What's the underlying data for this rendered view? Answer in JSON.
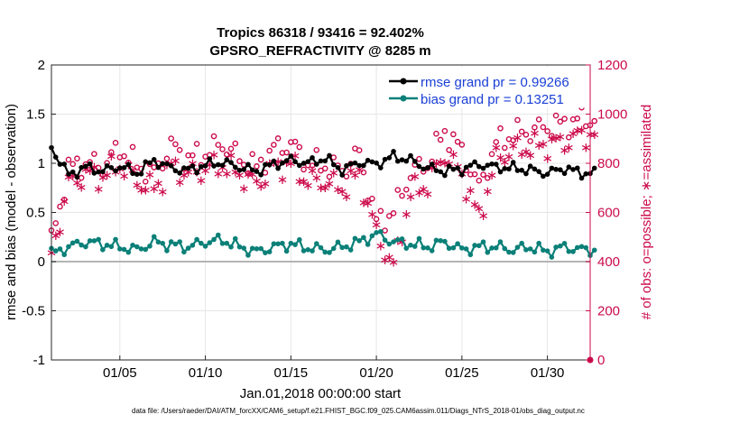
{
  "chart_data": {
    "type": "line",
    "title_line1": "Tropics 86318 / 93416 = 92.402%",
    "title_line2": "GPSRO_REFRACTIVITY @ 8285 m",
    "xlabel": "Jan.01,2018 00:00:00 start",
    "ylabel_left": "rmse and bias (model - observation)",
    "ylabel_right": "# of obs: o=possible; ∗=assimilated",
    "x_ticks": [
      "01/05",
      "01/10",
      "01/15",
      "01/20",
      "01/25",
      "01/30"
    ],
    "x_tick_days": [
      5,
      10,
      15,
      20,
      25,
      30
    ],
    "xlim": [
      1,
      32.5
    ],
    "ylim_left": [
      -1,
      2
    ],
    "ylim_right": [
      0,
      1200
    ],
    "y_ticks_left": [
      "-1",
      "-0.5",
      "0",
      "0.5",
      "1",
      "1.5",
      "2"
    ],
    "y_ticks_right": [
      "0",
      "200",
      "400",
      "600",
      "800",
      "1000",
      "1200"
    ],
    "legend": [
      {
        "name": "rmse grand pr = 0.99266",
        "color": "#000000"
      },
      {
        "name": "bias grand pr = 0.13251",
        "color": "#0a8078"
      }
    ],
    "colors": {
      "rmse": "#000000",
      "bias": "#0a8078",
      "obs": "#cc0a4a",
      "zero": "#b4b4b4"
    },
    "rmse_daily": [
      1.16,
      0.88,
      0.96,
      0.92,
      0.97,
      0.9,
      1.03,
      0.95,
      0.93,
      0.98,
      1.01,
      0.96,
      0.92,
      0.99,
      1.03,
      1.0,
      1.05,
      0.93,
      1.01,
      0.99,
      1.07,
      1.03,
      0.95,
      0.92,
      0.94,
      0.99,
      0.96,
      0.95,
      0.93,
      0.9,
      0.95,
      0.9
    ],
    "bias_daily": [
      0.08,
      0.15,
      0.2,
      0.18,
      0.15,
      0.12,
      0.2,
      0.17,
      0.15,
      0.2,
      0.22,
      0.15,
      0.1,
      0.15,
      0.18,
      0.14,
      0.12,
      0.15,
      0.2,
      0.28,
      0.2,
      0.18,
      0.15,
      0.2,
      0.12,
      0.15,
      0.15,
      0.12,
      0.15,
      0.1,
      0.15,
      0.12
    ],
    "possible_daily": [
      480,
      780,
      800,
      790,
      860,
      790,
      760,
      870,
      820,
      840,
      880,
      820,
      780,
      860,
      880,
      800,
      790,
      770,
      840,
      560,
      600,
      760,
      800,
      930,
      850,
      700,
      880,
      920,
      930,
      950,
      960,
      980
    ],
    "assimilated_daily": [
      430,
      720,
      760,
      750,
      800,
      730,
      700,
      790,
      760,
      780,
      800,
      760,
      720,
      790,
      800,
      730,
      730,
      700,
      760,
      520,
      380,
      680,
      720,
      840,
      760,
      580,
      820,
      860,
      870,
      880,
      890,
      920
    ],
    "points_per_day": 4,
    "footer": "data file: /Users/raeder/DAI/ATM_forcXX/CAM6_setup/f.e21.FHIST_BGC.f09_025.CAM6assim.011/Diags_NTrS_2018-01/obs_diag_output.nc"
  }
}
